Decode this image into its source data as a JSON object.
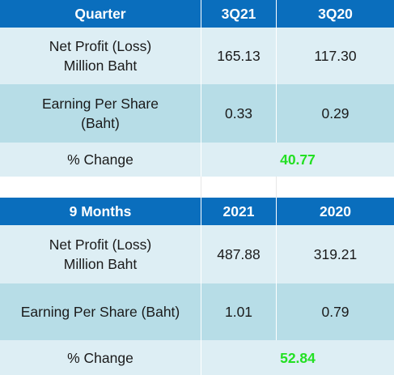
{
  "table1": {
    "header": [
      "Quarter",
      "3Q21",
      "3Q20"
    ],
    "rows": [
      {
        "label": "Net Profit (Loss)\nMillion Baht",
        "v1": "165.13",
        "v2": "117.30"
      },
      {
        "label": "Earning Per Share\n(Baht)",
        "v1": "0.33",
        "v2": "0.29"
      }
    ],
    "change": {
      "label": "% Change",
      "value": "40.77"
    }
  },
  "table2": {
    "header": [
      "9 Months",
      "2021",
      "2020"
    ],
    "rows": [
      {
        "label": "Net Profit (Loss)\nMillion Baht",
        "v1": "487.88",
        "v2": "319.21"
      },
      {
        "label": "Earning Per Share (Baht)",
        "v1": "1.01",
        "v2": "0.79"
      }
    ],
    "change": {
      "label": "% Change",
      "value": "52.84"
    }
  },
  "colors": {
    "header_bg": "#0a6ebd",
    "row_light": "#ddeef4",
    "row_mid": "#b7dde7",
    "change_value": "#22e022"
  }
}
